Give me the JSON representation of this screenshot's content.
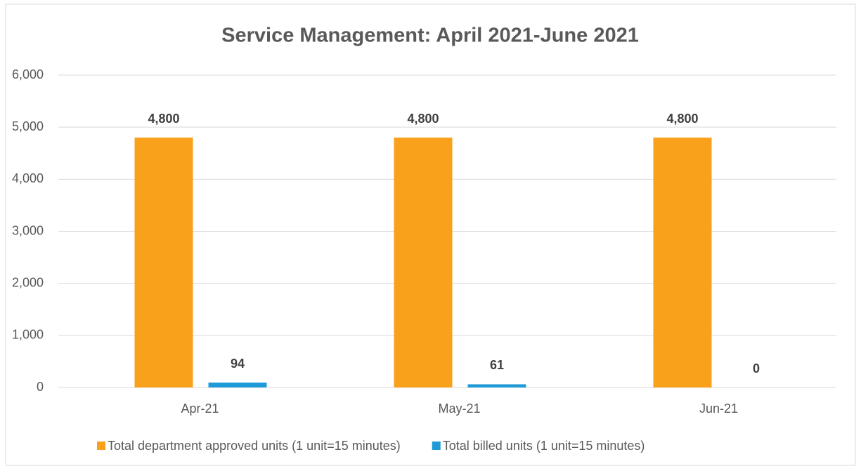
{
  "chart_data": {
    "type": "bar",
    "title": "Service Management: April 2021-June 2021",
    "categories": [
      "Apr-21",
      "May-21",
      "Jun-21"
    ],
    "series": [
      {
        "name": "Total department approved units (1 unit=15 minutes)",
        "color": "#f9a11b",
        "values": [
          4800,
          4800,
          4800
        ],
        "value_labels": [
          "4,800",
          "4,800",
          "4,800"
        ]
      },
      {
        "name": "Total billed units (1 unit=15 minutes)",
        "color": "#1e9bd7",
        "values": [
          94,
          61,
          0
        ]
      }
    ],
    "ylim": [
      0,
      6000
    ],
    "yticks": [
      0,
      {
        "value": 1000,
        "label": "1,000"
      },
      {
        "value": 2000,
        "label": "2,000"
      },
      {
        "value": 3000,
        "label": "3,000"
      },
      {
        "value": 4000,
        "label": "4,000"
      },
      {
        "value": 5000,
        "label": "5,000"
      },
      {
        "value": 6000,
        "label": "6,000"
      }
    ],
    "grid": true,
    "legend": "bottom"
  }
}
